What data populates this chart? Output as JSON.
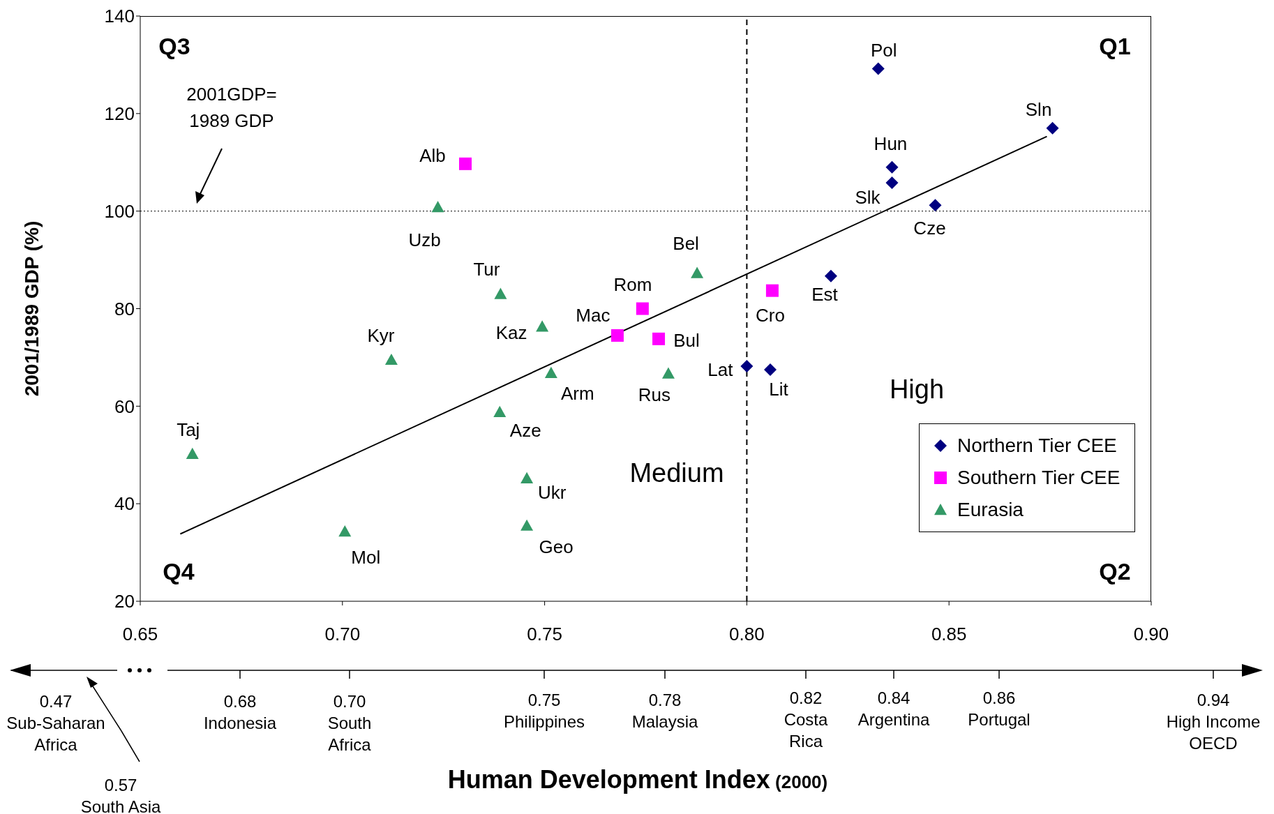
{
  "chart_data": {
    "type": "scatter",
    "xlabel": "Human Development Index (2000)",
    "ylabel": "2001/1989 GDP (%)",
    "xlim": [
      0.65,
      0.9
    ],
    "xticks": [
      0.65,
      {
        "value": 0.7,
        "label": "0.70"
      },
      0.75,
      {
        "value": 0.8,
        "label": "0.80"
      },
      0.85,
      {
        "value": 0.9,
        "label": "0.90"
      }
    ],
    "ylim": [
      20,
      140
    ],
    "yticks": [
      20,
      40,
      60,
      80,
      100,
      120,
      140
    ],
    "legend": "bottom right",
    "series": [
      {
        "name": "Northern Tier CEE",
        "color": "#000080",
        "marker": "diamond",
        "x": [
          0.8325,
          0.8756,
          0.8359,
          0.8359,
          0.8466,
          0.8208,
          0.8,
          0.8058
        ],
        "values": [
          129.2,
          117,
          109,
          105.8,
          101.2,
          86.7,
          68.2,
          67.5
        ],
        "value_labels": [
          "Pol",
          "Sln",
          "Hun",
          "Slk",
          "Cze",
          "Est",
          "Lat",
          "Lit"
        ]
      },
      {
        "name": "Southern Tier CEE",
        "color": "#ff00ff",
        "marker": "square",
        "x": [
          0.7304,
          0.7742,
          0.768,
          0.7782,
          0.8063
        ],
        "values": [
          109.7,
          80,
          74.5,
          73.8,
          83.7
        ],
        "value_labels": [
          "Alb",
          "Rom",
          "Mac",
          "Bul",
          "Cro"
        ]
      },
      {
        "name": "Eurasia",
        "color": "#339966",
        "marker": "triangle",
        "x": [
          0.7236,
          0.7877,
          0.7391,
          0.7494,
          0.7121,
          0.7516,
          0.7806,
          0.7389,
          0.6629,
          0.7456,
          0.7456,
          0.7006
        ],
        "values": [
          100.8,
          87.3,
          83,
          76.3,
          69.5,
          66.8,
          66.7,
          58.8,
          50.2,
          45.2,
          35.5,
          34.3
        ],
        "value_labels": [
          "Uzb",
          "Bel",
          "Tur",
          "Kaz",
          "Kyr",
          "Arm",
          "Rus",
          "Aze",
          "Taj",
          "Ukr",
          "Geo",
          "Mol"
        ]
      },
      {
        "type": "line",
        "color": "#000000",
        "x": [
          0.6599,
          0.8742
        ],
        "values": [
          33.8,
          115.3
        ]
      }
    ],
    "ref_lines": [
      {
        "axis": "x",
        "value": 0.8,
        "line_style": "dashed",
        "color": "#000000"
      },
      {
        "axis": "y",
        "value": 100,
        "line_style": "dotted",
        "color": "#000000"
      }
    ],
    "annotations": [
      "2001GDP= 1989 GDP",
      "Q3",
      "Q1",
      "Q4",
      "Q2",
      "High",
      "Medium",
      "0.47\nSub-Saharan\nAfrica",
      "0.57\nSouth Asia",
      "0.68\nIndonesia",
      "0.70\nSouth\nAfrica",
      "0.75\nPhilippines",
      "0.78\nMalaysia",
      "0.82\nCosta\nRica",
      "0.84\nArgentina",
      "0.86\nPortugal",
      "0.94\nHigh Income\nOECD"
    ]
  }
}
